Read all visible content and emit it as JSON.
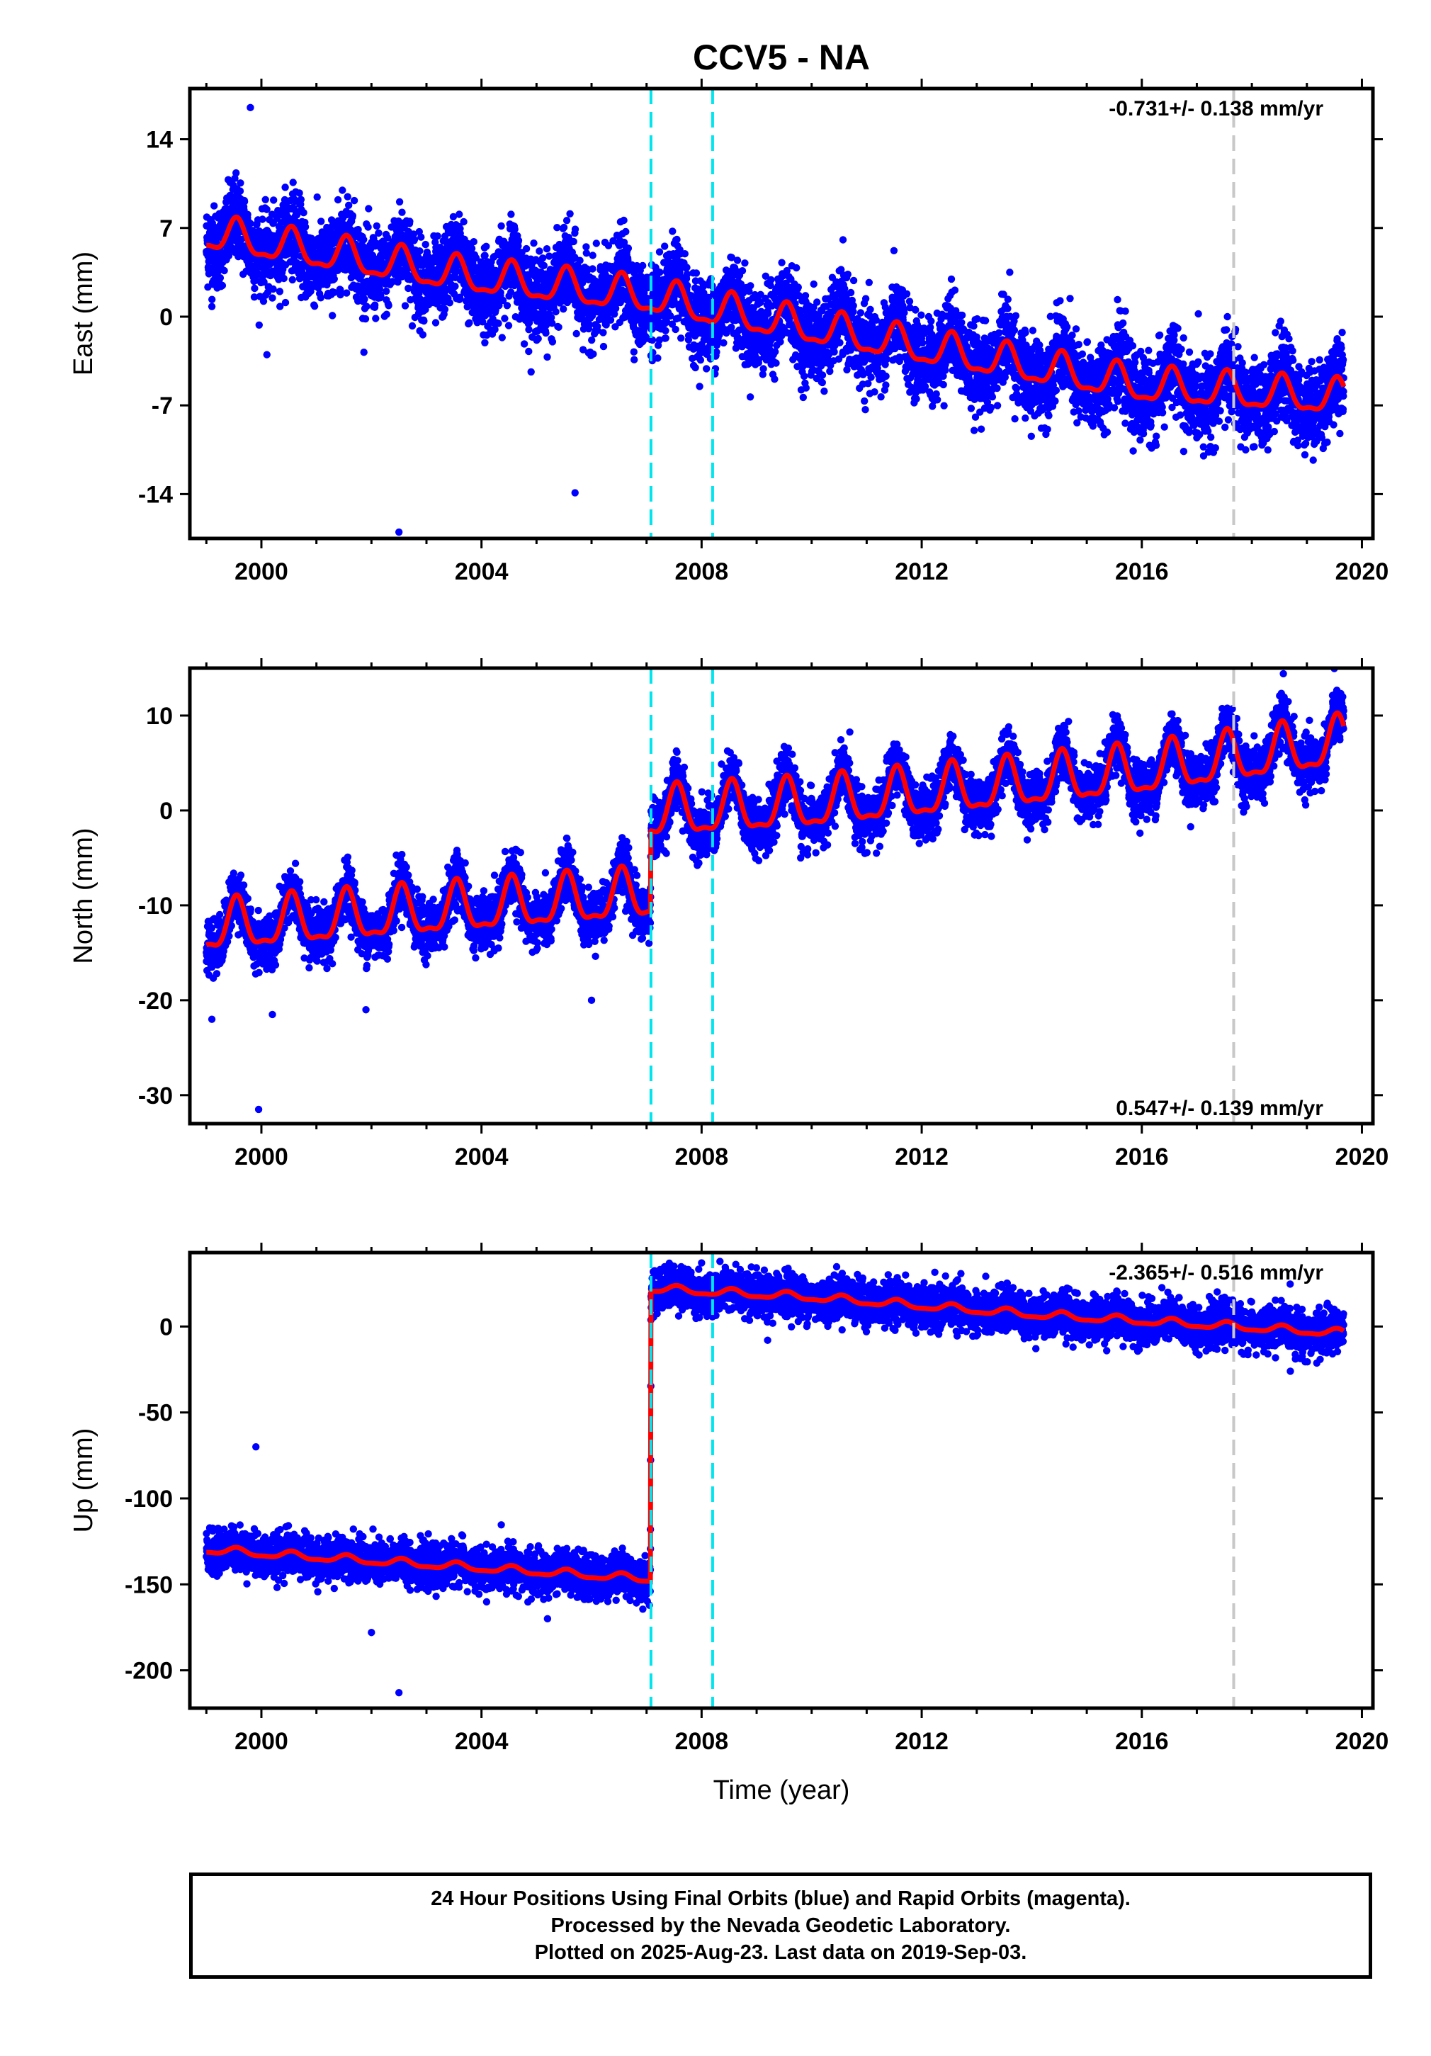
{
  "title": "CCV5 - NA",
  "xlabel": "Time (year)",
  "footer": {
    "line1": "24 Hour Positions Using Final Orbits (blue) and Rapid Orbits (magenta).",
    "line2": "Processed by the Nevada Geodetic Laboratory.",
    "line3": "Plotted on 2025-Aug-23. Last data on 2019-Sep-03."
  },
  "colors": {
    "points": "#0000ff",
    "model": "#ff0000",
    "offset_lines": "#00e5ee",
    "equipment_line": "#c8c8c8"
  },
  "chart_data": [
    {
      "type": "scatter",
      "name": "east",
      "ylabel": "East (mm)",
      "rate_label": "-0.731+/- 0.138 mm/yr",
      "rate_position": "top-right",
      "xlim": [
        1998.7,
        2020.2
      ],
      "ylim": [
        -17.5,
        18
      ],
      "xticks": [
        2000,
        2004,
        2008,
        2012,
        2016,
        2020
      ],
      "yticks": [
        14,
        7,
        0,
        -7,
        -14
      ],
      "yticklabels": [
        "14",
        "7",
        "0",
        "-7",
        "-14"
      ],
      "offset_lines": [
        2007.08,
        2008.2
      ],
      "equipment_lines": [
        2017.67
      ],
      "data_start": 1999.0,
      "data_end": 2019.67,
      "model": {
        "knots": [
          [
            1999.0,
            6.5
          ],
          [
            2003.6,
            3.2
          ],
          [
            2007.08,
            1.5
          ],
          [
            2008.2,
            0.5
          ],
          [
            2012.0,
            -2.5
          ],
          [
            2016.0,
            -5.5
          ],
          [
            2019.67,
            -6.5
          ]
        ],
        "seasonal_amplitude": 1.3,
        "offsets": [],
        "noise": 1.6
      },
      "outliers": [
        [
          1999.8,
          16.5
        ],
        [
          2002.5,
          -17.0
        ],
        [
          2005.7,
          -13.9
        ],
        [
          1999.1,
          0.8
        ],
        [
          2000.1,
          -3.0
        ],
        [
          2013.6,
          3.5
        ]
      ]
    },
    {
      "type": "scatter",
      "name": "north",
      "ylabel": "North (mm)",
      "rate_label": "0.547+/- 0.139 mm/yr",
      "rate_position": "bottom-right",
      "xlim": [
        1998.7,
        2020.2
      ],
      "ylim": [
        -33,
        15
      ],
      "xticks": [
        2000,
        2004,
        2008,
        2012,
        2016,
        2020
      ],
      "yticks": [
        10,
        0,
        -10,
        -20,
        -30
      ],
      "yticklabels": [
        "10",
        "0",
        "-10",
        "-20",
        "-30"
      ],
      "offset_lines": [
        2007.08,
        2008.2
      ],
      "equipment_lines": [
        2017.67
      ],
      "data_start": 1999.0,
      "data_end": 2019.67,
      "model": {
        "knots": [
          [
            1999.0,
            -12.5
          ],
          [
            2007.07,
            -9.0
          ],
          [
            2007.08,
            -0.5
          ],
          [
            2010.0,
            0.5
          ],
          [
            2016.0,
            4.0
          ],
          [
            2019.67,
            7.0
          ]
        ],
        "seasonal_amplitude": 2.5,
        "offsets": [],
        "noise": 1.4
      },
      "outliers": [
        [
          1999.1,
          -22.0
        ],
        [
          1999.95,
          -31.5
        ],
        [
          2000.2,
          -21.5
        ],
        [
          2001.9,
          -21.0
        ],
        [
          2006.0,
          -20.0
        ],
        [
          2009.8,
          -5.0
        ]
      ]
    },
    {
      "type": "scatter",
      "name": "up",
      "ylabel": "Up (mm)",
      "rate_label": "-2.365+/- 0.516 mm/yr",
      "rate_position": "top-right",
      "xlim": [
        1998.7,
        2020.2
      ],
      "ylim": [
        -222,
        43
      ],
      "xticks": [
        2000,
        2004,
        2008,
        2012,
        2016,
        2020
      ],
      "yticks": [
        0,
        -50,
        -100,
        -150,
        -200
      ],
      "yticklabels": [
        "0",
        "-50",
        "-100",
        "-150",
        "-200"
      ],
      "offset_lines": [
        2007.08,
        2008.2
      ],
      "equipment_lines": [
        2017.67
      ],
      "data_start": 1999.0,
      "data_end": 2019.67,
      "model": {
        "knots": [
          [
            1999.0,
            -130.0
          ],
          [
            2007.07,
            -147.0
          ],
          [
            2007.08,
            22.0
          ],
          [
            2010.0,
            17.0
          ],
          [
            2014.0,
            7.0
          ],
          [
            2017.67,
            0.0
          ],
          [
            2019.67,
            -4.0
          ]
        ],
        "seasonal_amplitude": 2.0,
        "offsets": [],
        "noise": 6.0
      },
      "outliers": [
        [
          1999.9,
          -70.0
        ],
        [
          2002.5,
          -213.0
        ],
        [
          2002.0,
          -178.0
        ],
        [
          2005.2,
          -170.0
        ],
        [
          2018.7,
          -26.0
        ],
        [
          2007.07,
          -118.0
        ],
        [
          2008.0,
          37.0
        ],
        [
          2009.2,
          -8.0
        ]
      ]
    }
  ]
}
